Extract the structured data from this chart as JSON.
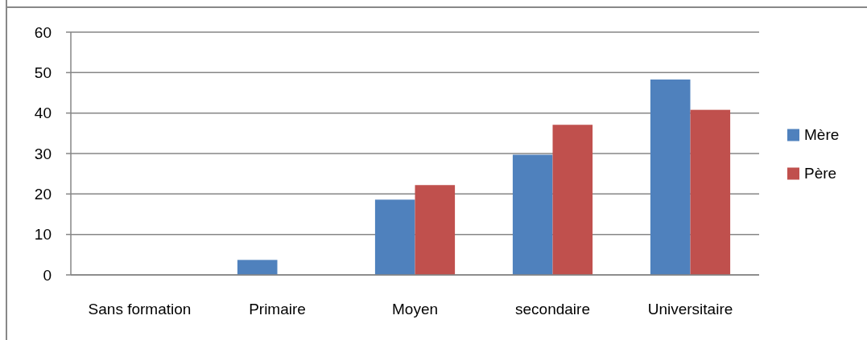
{
  "chart_data": {
    "type": "bar",
    "categories": [
      "Sans formation",
      "Primaire",
      "Moyen",
      "secondaire",
      "Universitaire"
    ],
    "series": [
      {
        "name": "Mère",
        "color": "#4f81bd",
        "values": [
          0,
          3.7,
          18.6,
          29.7,
          48.3
        ]
      },
      {
        "name": "Père",
        "color": "#c0504d",
        "values": [
          0,
          0,
          22.2,
          37.1,
          40.8
        ]
      }
    ],
    "ylim": [
      0,
      60
    ],
    "yticks": [
      0,
      10,
      20,
      30,
      40,
      50,
      60
    ],
    "grid": "y",
    "legend": "right"
  }
}
